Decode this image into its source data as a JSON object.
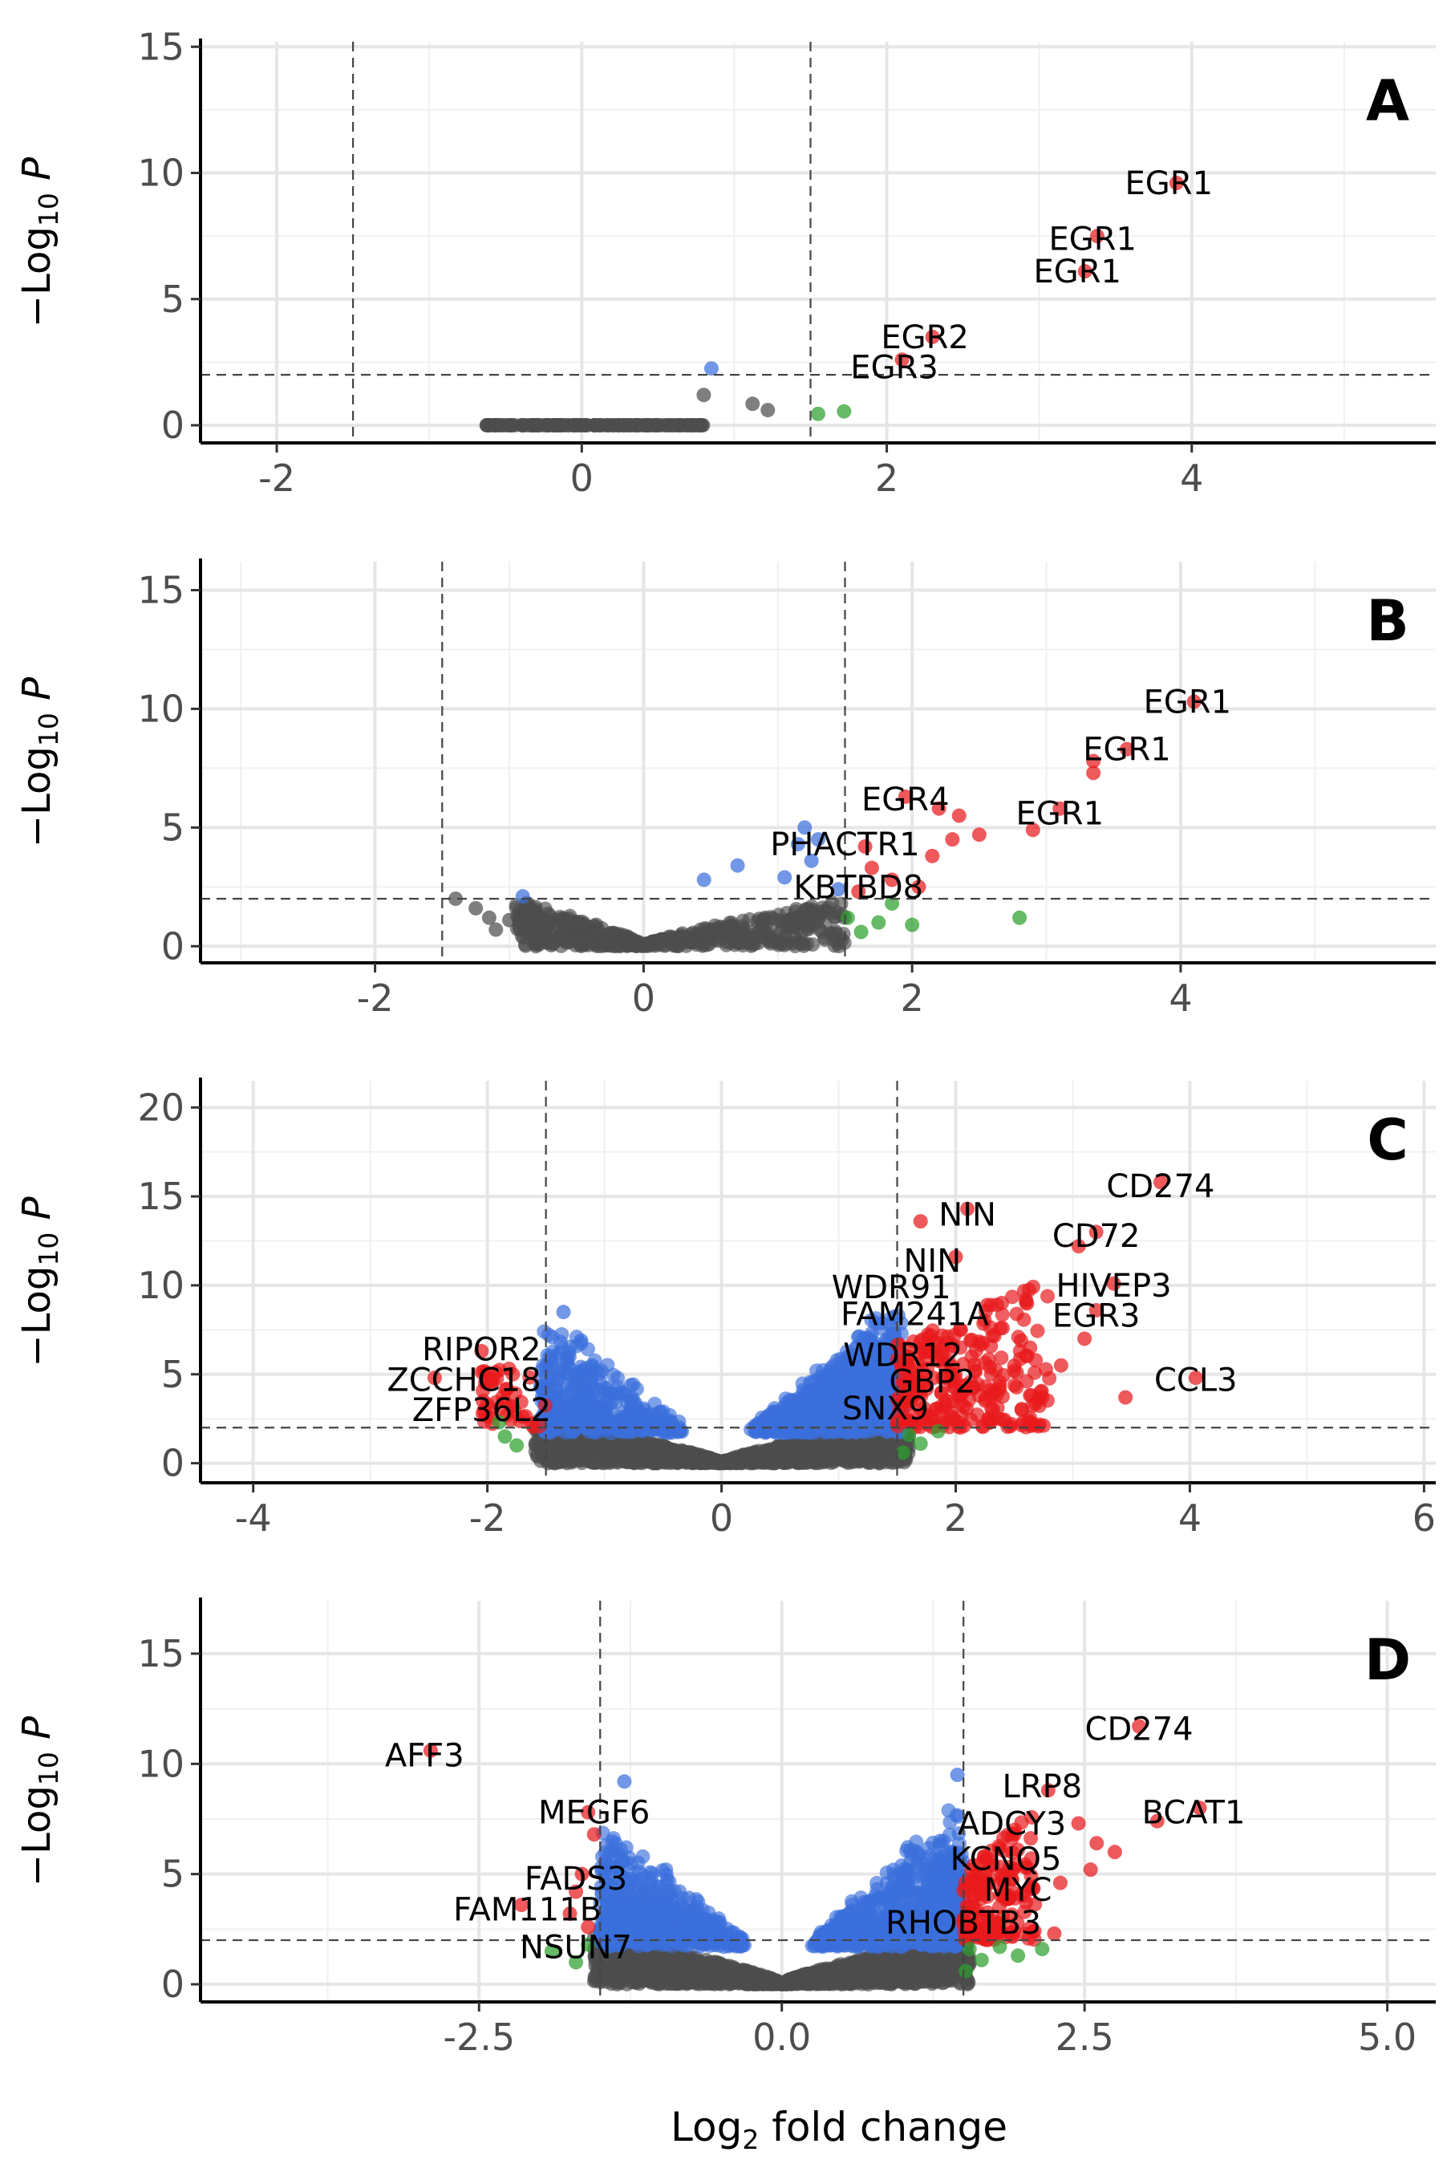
{
  "figure": {
    "xlabel": "Log2 fold change",
    "ylabel": "−Log10 P"
  },
  "colors": {
    "ns": "#4d4d4d",
    "log2fc_only": "#2ca02c",
    "p_only": "#3a6fdc",
    "p_and_log2fc": "#e8191d"
  },
  "chart_data": [
    {
      "type": "scatter",
      "panel": "A",
      "xlabel": "Log2 fold change",
      "ylabel": "−Log10 P",
      "xlim": [
        -2.5,
        5.6
      ],
      "ylim": [
        -0.7,
        15.2
      ],
      "xticks": [
        -2,
        0,
        2,
        4
      ],
      "xtick_labels": [
        "-2",
        "0",
        "2",
        "4"
      ],
      "yticks": [
        0,
        5,
        10,
        15
      ],
      "fc_cutoffs": [
        -1.5,
        1.5
      ],
      "p_cutoff": 2,
      "ns_cloud": {
        "xmin": -0.65,
        "xmax": 0.8,
        "peak": 0,
        "base": 0,
        "n": 140,
        "seed": 11
      },
      "points": [
        {
          "x": 0.8,
          "y": 1.2,
          "cat": "ns"
        },
        {
          "x": 1.12,
          "y": 0.85,
          "cat": "ns"
        },
        {
          "x": 1.22,
          "y": 0.6,
          "cat": "ns"
        },
        {
          "x": 0.85,
          "y": 2.25,
          "cat": "p_only"
        },
        {
          "x": 1.55,
          "y": 0.45,
          "cat": "log2fc_only"
        },
        {
          "x": 1.72,
          "y": 0.55,
          "cat": "log2fc_only"
        },
        {
          "x": 3.9,
          "y": 9.6,
          "cat": "p_and_log2fc"
        },
        {
          "x": 3.38,
          "y": 7.5,
          "cat": "p_and_log2fc"
        },
        {
          "x": 3.3,
          "y": 6.1,
          "cat": "p_and_log2fc"
        },
        {
          "x": 2.3,
          "y": 3.5,
          "cat": "p_and_log2fc"
        },
        {
          "x": 2.1,
          "y": 2.6,
          "cat": "p_and_log2fc"
        }
      ],
      "labels": [
        {
          "text": "EGR1",
          "x": 3.85,
          "y": 9.6
        },
        {
          "text": "EGR1",
          "x": 3.35,
          "y": 7.4
        },
        {
          "text": "EGR1",
          "x": 3.25,
          "y": 6.1
        },
        {
          "text": "EGR2",
          "x": 2.25,
          "y": 3.5
        },
        {
          "text": "EGR3",
          "x": 2.05,
          "y": 2.3
        }
      ]
    },
    {
      "type": "scatter",
      "panel": "B",
      "xlabel": "Log2 fold change",
      "ylabel": "−Log10 P",
      "xlim": [
        -3.3,
        5.9
      ],
      "ylim": [
        -0.7,
        16.2
      ],
      "xticks": [
        -2,
        0,
        2,
        4
      ],
      "xtick_labels": [
        "-2",
        "0",
        "2",
        "4"
      ],
      "yticks": [
        0,
        5,
        10,
        15
      ],
      "fc_cutoffs": [
        -1.5,
        1.5
      ],
      "p_cutoff": 2,
      "ns_cloud": {
        "xmin": -0.95,
        "xmax": 1.5,
        "peak": 1.9,
        "base": 0,
        "n": 520,
        "seed": 23
      },
      "points": [
        {
          "x": -1.4,
          "y": 2.0,
          "cat": "ns"
        },
        {
          "x": -1.25,
          "y": 1.6,
          "cat": "ns"
        },
        {
          "x": -1.15,
          "y": 1.2,
          "cat": "ns"
        },
        {
          "x": -1.1,
          "y": 0.7,
          "cat": "ns"
        },
        {
          "x": -1.0,
          "y": 1.1,
          "cat": "ns"
        },
        {
          "x": -0.9,
          "y": 2.1,
          "cat": "p_only"
        },
        {
          "x": 0.45,
          "y": 2.8,
          "cat": "p_only"
        },
        {
          "x": 0.7,
          "y": 3.4,
          "cat": "p_only"
        },
        {
          "x": 1.05,
          "y": 2.9,
          "cat": "p_only"
        },
        {
          "x": 1.15,
          "y": 4.3,
          "cat": "p_only"
        },
        {
          "x": 1.25,
          "y": 3.6,
          "cat": "p_only"
        },
        {
          "x": 1.3,
          "y": 4.5,
          "cat": "p_only"
        },
        {
          "x": 1.2,
          "y": 5.0,
          "cat": "p_only"
        },
        {
          "x": 1.45,
          "y": 2.4,
          "cat": "p_only"
        },
        {
          "x": 1.52,
          "y": 1.2,
          "cat": "log2fc_only"
        },
        {
          "x": 1.62,
          "y": 0.6,
          "cat": "log2fc_only"
        },
        {
          "x": 1.75,
          "y": 1.0,
          "cat": "log2fc_only"
        },
        {
          "x": 1.85,
          "y": 1.8,
          "cat": "log2fc_only"
        },
        {
          "x": 2.0,
          "y": 0.9,
          "cat": "log2fc_only"
        },
        {
          "x": 2.8,
          "y": 1.2,
          "cat": "log2fc_only"
        },
        {
          "x": 4.1,
          "y": 10.3,
          "cat": "p_and_log2fc"
        },
        {
          "x": 3.6,
          "y": 8.3,
          "cat": "p_and_log2fc"
        },
        {
          "x": 3.35,
          "y": 7.8,
          "cat": "p_and_log2fc"
        },
        {
          "x": 3.35,
          "y": 7.3,
          "cat": "p_and_log2fc"
        },
        {
          "x": 3.1,
          "y": 5.8,
          "cat": "p_and_log2fc"
        },
        {
          "x": 2.9,
          "y": 4.9,
          "cat": "p_and_log2fc"
        },
        {
          "x": 1.95,
          "y": 6.3,
          "cat": "p_and_log2fc"
        },
        {
          "x": 2.2,
          "y": 5.8,
          "cat": "p_and_log2fc"
        },
        {
          "x": 2.35,
          "y": 5.5,
          "cat": "p_and_log2fc"
        },
        {
          "x": 2.5,
          "y": 4.7,
          "cat": "p_and_log2fc"
        },
        {
          "x": 2.3,
          "y": 4.5,
          "cat": "p_and_log2fc"
        },
        {
          "x": 2.15,
          "y": 3.8,
          "cat": "p_and_log2fc"
        },
        {
          "x": 1.65,
          "y": 4.2,
          "cat": "p_and_log2fc"
        },
        {
          "x": 1.7,
          "y": 3.3,
          "cat": "p_and_log2fc"
        },
        {
          "x": 1.85,
          "y": 2.8,
          "cat": "p_and_log2fc"
        },
        {
          "x": 1.6,
          "y": 2.3,
          "cat": "p_and_log2fc"
        },
        {
          "x": 2.05,
          "y": 2.5,
          "cat": "p_and_log2fc"
        }
      ],
      "labels": [
        {
          "text": "EGR1",
          "x": 4.05,
          "y": 10.3
        },
        {
          "text": "EGR1",
          "x": 3.6,
          "y": 8.3
        },
        {
          "text": "EGR4",
          "x": 1.95,
          "y": 6.2
        },
        {
          "text": "EGR1",
          "x": 3.1,
          "y": 5.6
        },
        {
          "text": "PHACTR1",
          "x": 1.5,
          "y": 4.3
        },
        {
          "text": "KBTBD8",
          "x": 1.6,
          "y": 2.5
        }
      ]
    },
    {
      "type": "scatter",
      "panel": "C",
      "xlabel": "Log2 fold change",
      "ylabel": "−Log10 P",
      "xlim": [
        -4.45,
        6.1
      ],
      "ylim": [
        -1.1,
        21.5
      ],
      "xticks": [
        -4,
        -2,
        0,
        2,
        4,
        6
      ],
      "xtick_labels": [
        "-4",
        "-2",
        "0",
        "2",
        "4",
        "6"
      ],
      "yticks": [
        0,
        5,
        10,
        15,
        20
      ],
      "fc_cutoffs": [
        -1.5,
        1.5
      ],
      "p_cutoff": 2,
      "ns_cloud": {
        "xmin": -1.6,
        "xmax": 1.6,
        "peak": 2.4,
        "base": 0,
        "n": 1800,
        "seed": 37
      },
      "blue_clouds": [
        {
          "xmin": -1.55,
          "xmax": -0.3,
          "ymax": 8.2,
          "n": 400,
          "seed": 41
        },
        {
          "xmin": 0.25,
          "xmax": 1.55,
          "ymax": 9.0,
          "n": 900,
          "seed": 43
        }
      ],
      "red_clouds": [
        {
          "xmin": 1.5,
          "xmax": 2.8,
          "ymax": 10.5,
          "n": 260,
          "seed": 47
        },
        {
          "xmin": -2.05,
          "xmax": -1.5,
          "ymax": 6.5,
          "n": 45,
          "seed": 53
        }
      ],
      "points": [
        {
          "x": 3.75,
          "y": 15.8,
          "cat": "p_and_log2fc"
        },
        {
          "x": 3.2,
          "y": 13.0,
          "cat": "p_and_log2fc"
        },
        {
          "x": 2.1,
          "y": 14.3,
          "cat": "p_and_log2fc"
        },
        {
          "x": 1.7,
          "y": 13.6,
          "cat": "p_and_log2fc"
        },
        {
          "x": 2.0,
          "y": 11.6,
          "cat": "p_and_log2fc"
        },
        {
          "x": 3.05,
          "y": 12.2,
          "cat": "p_and_log2fc"
        },
        {
          "x": 3.35,
          "y": 10.1,
          "cat": "p_and_log2fc"
        },
        {
          "x": 3.2,
          "y": 8.6,
          "cat": "p_and_log2fc"
        },
        {
          "x": 3.1,
          "y": 7.0,
          "cat": "p_and_log2fc"
        },
        {
          "x": 2.9,
          "y": 5.5,
          "cat": "p_and_log2fc"
        },
        {
          "x": 4.05,
          "y": 4.8,
          "cat": "p_and_log2fc"
        },
        {
          "x": 3.45,
          "y": 3.7,
          "cat": "p_and_log2fc"
        },
        {
          "x": 2.6,
          "y": 9.2,
          "cat": "p_and_log2fc"
        },
        {
          "x": 2.4,
          "y": 7.6,
          "cat": "p_and_log2fc"
        },
        {
          "x": -2.05,
          "y": 6.3,
          "cat": "p_and_log2fc"
        },
        {
          "x": -2.45,
          "y": 4.8,
          "cat": "p_and_log2fc"
        },
        {
          "x": -1.8,
          "y": 3.2,
          "cat": "p_and_log2fc"
        },
        {
          "x": -1.35,
          "y": 8.5,
          "cat": "p_only"
        },
        {
          "x": -1.2,
          "y": 6.9,
          "cat": "p_only"
        },
        {
          "x": -1.85,
          "y": 1.5,
          "cat": "log2fc_only"
        },
        {
          "x": -1.75,
          "y": 1.0,
          "cat": "log2fc_only"
        },
        {
          "x": -1.9,
          "y": 2.3,
          "cat": "log2fc_only"
        },
        {
          "x": 1.6,
          "y": 1.6,
          "cat": "log2fc_only"
        },
        {
          "x": 1.7,
          "y": 1.1,
          "cat": "log2fc_only"
        },
        {
          "x": 1.85,
          "y": 1.8,
          "cat": "log2fc_only"
        },
        {
          "x": 1.55,
          "y": 0.6,
          "cat": "log2fc_only"
        }
      ],
      "labels": [
        {
          "text": "CD274",
          "x": 3.75,
          "y": 15.6
        },
        {
          "text": "NIN",
          "x": 2.1,
          "y": 14.0
        },
        {
          "text": "CD72",
          "x": 3.2,
          "y": 12.8
        },
        {
          "text": "NIN",
          "x": 1.8,
          "y": 11.4
        },
        {
          "text": "WDR91",
          "x": 1.45,
          "y": 9.9
        },
        {
          "text": "HIVEP3",
          "x": 3.35,
          "y": 10.0
        },
        {
          "text": "FAM241A",
          "x": 1.65,
          "y": 8.4
        },
        {
          "text": "EGR3",
          "x": 3.2,
          "y": 8.3
        },
        {
          "text": "RIPOR2",
          "x": -2.05,
          "y": 6.4
        },
        {
          "text": "WDR12",
          "x": 1.55,
          "y": 6.1
        },
        {
          "text": "ZCCHC18",
          "x": -2.2,
          "y": 4.7
        },
        {
          "text": "CCL3",
          "x": 4.05,
          "y": 4.7
        },
        {
          "text": "GBP2",
          "x": 1.8,
          "y": 4.6
        },
        {
          "text": "ZFP36L2",
          "x": -2.05,
          "y": 3.0
        },
        {
          "text": "SNX9",
          "x": 1.4,
          "y": 3.1
        }
      ]
    },
    {
      "type": "scatter",
      "panel": "D",
      "xlabel": "Log2 fold change",
      "ylabel": "−Log10 P",
      "xlim": [
        -4.8,
        5.4
      ],
      "ylim": [
        -0.8,
        17.4
      ],
      "xticks": [
        -2.5,
        0.0,
        2.5,
        5.0
      ],
      "xtick_labels": [
        "-2.5",
        "0.0",
        "2.5",
        "5.0"
      ],
      "yticks": [
        0,
        5,
        10,
        15
      ],
      "fc_cutoffs": [
        -1.5,
        1.5
      ],
      "p_cutoff": 2,
      "ns_cloud": {
        "xmin": -1.55,
        "xmax": 1.55,
        "peak": 2.2,
        "base": 0,
        "n": 1700,
        "seed": 59
      },
      "blue_clouds": [
        {
          "xmin": -1.5,
          "xmax": -0.3,
          "ymax": 7.2,
          "n": 550,
          "seed": 61
        },
        {
          "xmin": 0.25,
          "xmax": 1.5,
          "ymax": 8.2,
          "n": 750,
          "seed": 67
        }
      ],
      "red_clouds": [
        {
          "xmin": 1.5,
          "xmax": 2.1,
          "ymax": 8.0,
          "n": 150,
          "seed": 71
        }
      ],
      "points": [
        {
          "x": -2.9,
          "y": 10.6,
          "cat": "p_and_log2fc"
        },
        {
          "x": -1.6,
          "y": 7.8,
          "cat": "p_and_log2fc"
        },
        {
          "x": -1.55,
          "y": 6.8,
          "cat": "p_and_log2fc"
        },
        {
          "x": -1.65,
          "y": 5.0,
          "cat": "p_and_log2fc"
        },
        {
          "x": -1.7,
          "y": 4.2,
          "cat": "p_and_log2fc"
        },
        {
          "x": -2.15,
          "y": 3.6,
          "cat": "p_and_log2fc"
        },
        {
          "x": -1.75,
          "y": 3.2,
          "cat": "p_and_log2fc"
        },
        {
          "x": -1.6,
          "y": 2.6,
          "cat": "p_and_log2fc"
        },
        {
          "x": 2.95,
          "y": 11.7,
          "cat": "p_and_log2fc"
        },
        {
          "x": 3.45,
          "y": 8.0,
          "cat": "p_and_log2fc"
        },
        {
          "x": 3.1,
          "y": 7.4,
          "cat": "p_and_log2fc"
        },
        {
          "x": 2.2,
          "y": 8.8,
          "cat": "p_and_log2fc"
        },
        {
          "x": 2.45,
          "y": 7.3,
          "cat": "p_and_log2fc"
        },
        {
          "x": 2.6,
          "y": 6.4,
          "cat": "p_and_log2fc"
        },
        {
          "x": 2.75,
          "y": 6.0,
          "cat": "p_and_log2fc"
        },
        {
          "x": 2.55,
          "y": 5.2,
          "cat": "p_and_log2fc"
        },
        {
          "x": 2.3,
          "y": 4.6,
          "cat": "p_and_log2fc"
        },
        {
          "x": 2.0,
          "y": 4.0,
          "cat": "p_and_log2fc"
        },
        {
          "x": 2.25,
          "y": 2.3,
          "cat": "p_and_log2fc"
        },
        {
          "x": -1.3,
          "y": 9.2,
          "cat": "p_only"
        },
        {
          "x": 1.45,
          "y": 9.5,
          "cat": "p_only"
        },
        {
          "x": -1.9,
          "y": 1.5,
          "cat": "log2fc_only"
        },
        {
          "x": -1.7,
          "y": 1.0,
          "cat": "log2fc_only"
        },
        {
          "x": -1.6,
          "y": 1.8,
          "cat": "log2fc_only"
        },
        {
          "x": 1.55,
          "y": 1.6,
          "cat": "log2fc_only"
        },
        {
          "x": 1.65,
          "y": 1.1,
          "cat": "log2fc_only"
        },
        {
          "x": 1.8,
          "y": 1.7,
          "cat": "log2fc_only"
        },
        {
          "x": 1.95,
          "y": 1.3,
          "cat": "log2fc_only"
        },
        {
          "x": 2.15,
          "y": 1.6,
          "cat": "log2fc_only"
        },
        {
          "x": 1.52,
          "y": 0.6,
          "cat": "log2fc_only"
        }
      ],
      "labels": [
        {
          "text": "CD274",
          "x": 2.95,
          "y": 11.6
        },
        {
          "text": "AFF3",
          "x": -2.95,
          "y": 10.4
        },
        {
          "text": "LRP8",
          "x": 2.15,
          "y": 9.0
        },
        {
          "text": "MEGF6",
          "x": -1.55,
          "y": 7.8
        },
        {
          "text": "BCAT1",
          "x": 3.4,
          "y": 7.8
        },
        {
          "text": "ADCY3",
          "x": 1.9,
          "y": 7.3
        },
        {
          "text": "KCNQ5",
          "x": 1.85,
          "y": 5.7
        },
        {
          "text": "FADS3",
          "x": -1.7,
          "y": 4.8
        },
        {
          "text": "MYC",
          "x": 1.95,
          "y": 4.3
        },
        {
          "text": "FAM111B",
          "x": -2.1,
          "y": 3.4
        },
        {
          "text": "RHOBTB3",
          "x": 1.5,
          "y": 2.8
        },
        {
          "text": "NSUN7",
          "x": -1.7,
          "y": 1.7
        }
      ]
    }
  ]
}
